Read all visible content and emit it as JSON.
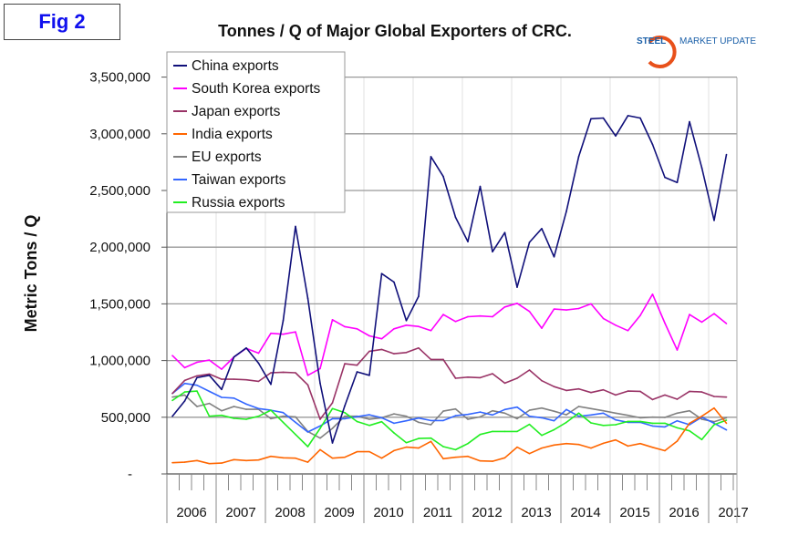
{
  "figure_label": "Fig 2",
  "logo": {
    "text_bold": "STEEL",
    "text_rest": "MARKET UPDATE",
    "color": "#1a5fa8",
    "arc_color": "#e8501a"
  },
  "chart_data": {
    "type": "line",
    "title": "Tonnes / Q of Major Global Exporters of CRC.",
    "ylabel": "Metric Tons / Q",
    "xlabel": "",
    "ylim": [
      0,
      3500000
    ],
    "yticks": [
      0,
      500000,
      1000000,
      1500000,
      2000000,
      2500000,
      3000000,
      3500000
    ],
    "ytick_labels": [
      "-",
      "500,000",
      "1,000,000",
      "1,500,000",
      "2,000,000",
      "2,500,000",
      "3,000,000",
      "3,500,000"
    ],
    "years": [
      "2006",
      "2007",
      "2008",
      "2009",
      "2010",
      "2011",
      "2012",
      "2013",
      "2014",
      "2015",
      "2016",
      "2017"
    ],
    "x_period": "quarterly, 2006 Q1 - 2017 Q2",
    "grid": "horizontal major, vertical at year boundaries",
    "legend_position": "top-left",
    "series": [
      {
        "name": "China exports",
        "color": "#10107a",
        "values": [
          509000,
          643000,
          849000,
          870000,
          745000,
          1031000,
          1111000,
          977000,
          790000,
          1352000,
          2183000,
          1550000,
          800000,
          273000,
          600000,
          900000,
          870000,
          1767000,
          1692000,
          1352000,
          1567000,
          2798000,
          2624000,
          2263000,
          2049000,
          2536000,
          1960000,
          2129000,
          1647000,
          2043000,
          2164000,
          1915000,
          2316000,
          2798000,
          3133000,
          3139000,
          2981000,
          3160000,
          3139000,
          2906000,
          2616000,
          2571000,
          3107000,
          2700000,
          2236000,
          2817000
        ]
      },
      {
        "name": "South Korea exports",
        "color": "#ff00ff",
        "values": [
          1044000,
          937000,
          985000,
          1004000,
          924000,
          1031000,
          1108000,
          1065000,
          1240000,
          1232000,
          1253000,
          870000,
          929000,
          1360000,
          1299000,
          1280000,
          1218000,
          1192000,
          1280000,
          1312000,
          1301000,
          1264000,
          1406000,
          1344000,
          1387000,
          1393000,
          1387000,
          1473000,
          1505000,
          1433000,
          1285000,
          1454000,
          1446000,
          1459000,
          1500000,
          1371000,
          1312000,
          1264000,
          1398000,
          1585000,
          1330000,
          1093000,
          1406000,
          1339000,
          1414000,
          1326000
        ]
      },
      {
        "name": "Japan exports",
        "color": "#993366",
        "values": [
          710000,
          825000,
          865000,
          881000,
          835000,
          835000,
          830000,
          817000,
          892000,
          897000,
          892000,
          785000,
          482000,
          627000,
          972000,
          959000,
          1082000,
          1098000,
          1060000,
          1071000,
          1111000,
          1010000,
          1010000,
          844000,
          854000,
          849000,
          884000,
          801000,
          844000,
          916000,
          822000,
          770000,
          736000,
          750000,
          718000,
          742000,
          696000,
          731000,
          728000,
          656000,
          696000,
          659000,
          728000,
          723000,
          683000,
          678000
        ]
      },
      {
        "name": "India exports",
        "color": "#ff6600",
        "values": [
          99000,
          104000,
          118000,
          91000,
          96000,
          126000,
          118000,
          123000,
          155000,
          142000,
          139000,
          104000,
          214000,
          139000,
          147000,
          196000,
          196000,
          139000,
          206000,
          236000,
          228000,
          287000,
          134000,
          147000,
          155000,
          115000,
          112000,
          142000,
          236000,
          179000,
          228000,
          255000,
          268000,
          260000,
          228000,
          270000,
          300000,
          246000,
          268000,
          235000,
          205000,
          289000,
          447000,
          509000,
          581000,
          447000
        ]
      },
      {
        "name": "EU exports",
        "color": "#808080",
        "values": [
          678000,
          696000,
          595000,
          622000,
          557000,
          595000,
          570000,
          570000,
          487000,
          509000,
          503000,
          375000,
          316000,
          402000,
          509000,
          509000,
          482000,
          495000,
          530000,
          509000,
          455000,
          434000,
          554000,
          573000,
          482000,
          503000,
          557000,
          536000,
          487000,
          562000,
          581000,
          553000,
          522000,
          595000,
          576000,
          557000,
          536000,
          517000,
          495000,
          501000,
          498000,
          536000,
          557000,
          482000,
          461000,
          495000
        ]
      },
      {
        "name": "Taiwan exports",
        "color": "#3366ff",
        "values": [
          710000,
          798000,
          782000,
          728000,
          675000,
          669000,
          616000,
          576000,
          562000,
          541000,
          455000,
          370000,
          423000,
          487000,
          487000,
          505000,
          522000,
          495000,
          447000,
          469000,
          493000,
          471000,
          471000,
          514000,
          525000,
          546000,
          520000,
          568000,
          589000,
          509000,
          495000,
          469000,
          568000,
          509000,
          520000,
          536000,
          477000,
          455000,
          455000,
          423000,
          415000,
          469000,
          434000,
          501000,
          447000,
          388000
        ]
      },
      {
        "name": "Russia exports",
        "color": "#22ee22",
        "values": [
          648000,
          723000,
          731000,
          509000,
          517000,
          490000,
          482000,
          509000,
          562000,
          455000,
          348000,
          241000,
          402000,
          576000,
          541000,
          462000,
          428000,
          461000,
          362000,
          276000,
          313000,
          316000,
          241000,
          214000,
          268000,
          348000,
          375000,
          375000,
          375000,
          437000,
          340000,
          390000,
          455000,
          536000,
          450000,
          428000,
          434000,
          463000,
          463000,
          447000,
          447000,
          407000,
          380000,
          303000,
          434000,
          474000
        ]
      }
    ]
  }
}
